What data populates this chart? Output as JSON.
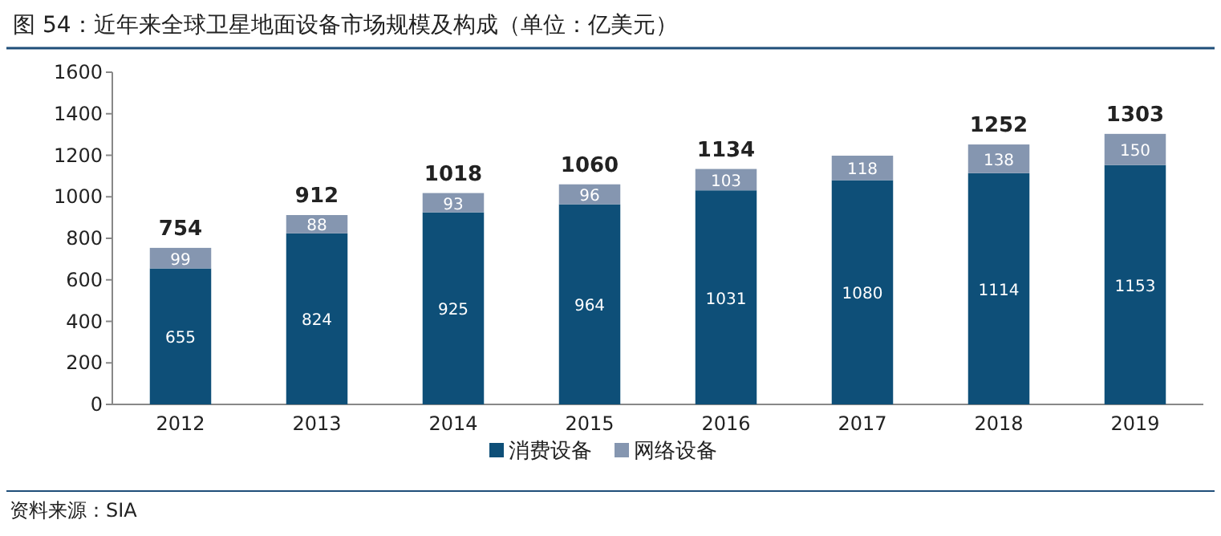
{
  "chart_data": {
    "type": "bar",
    "stacked": true,
    "title": "图 54：近年来全球卫星地面设备市场规模及构成（单位：亿美元）",
    "categories": [
      "2012",
      "2013",
      "2014",
      "2015",
      "2016",
      "2017",
      "2018",
      "2019"
    ],
    "series": [
      {
        "name": "消费设备",
        "color": "#0e4f78",
        "values": [
          655,
          824,
          925,
          964,
          1031,
          1080,
          1114,
          1153
        ],
        "value_labels": [
          "655",
          "824",
          "925",
          "964",
          "1031",
          "1080",
          "1114",
          "1153"
        ]
      },
      {
        "name": "网络设备",
        "color": "#8596b0",
        "values": [
          99,
          88,
          93,
          96,
          103,
          118,
          138,
          150
        ],
        "value_labels": [
          "99",
          "88",
          "93",
          "96",
          "103",
          "118",
          "138",
          "150"
        ]
      }
    ],
    "totals": [
      "754",
      "912",
      "1018",
      "1060",
      "1134",
      null,
      "1252",
      "1303"
    ],
    "ylim": [
      0,
      1600
    ],
    "yticks": [
      0,
      200,
      400,
      600,
      800,
      1000,
      1200,
      1400,
      1600
    ],
    "legend": "bottom",
    "annotations": [
      "资料来源：SIA"
    ]
  }
}
